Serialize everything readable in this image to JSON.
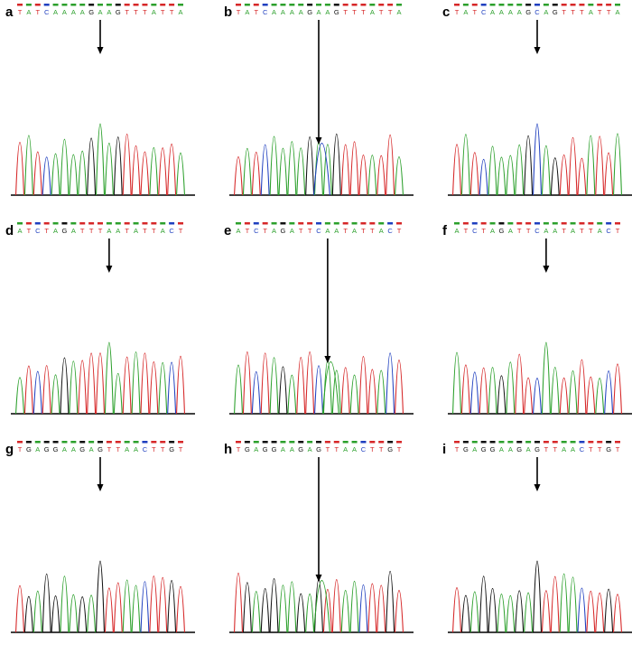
{
  "figure": {
    "description_free": true,
    "base_colors": {
      "A": "#2ca02c",
      "T": "#d62728",
      "C": "#1f3fbf",
      "G": "#111111",
      "N": "#999999",
      "axis": "#000000",
      "arrow": "#000000"
    },
    "panels": [
      {
        "label": "a",
        "sequence": "TATCAAAAGAAGTTTATTA",
        "mutant_index": 9,
        "heterozygous": false
      },
      {
        "label": "b",
        "sequence": "TATCAAAAGAAGTTTATTA",
        "mutant_index": 9,
        "heterozygous": true,
        "second_base": "C"
      },
      {
        "label": "c",
        "sequence": "TATCAAAAGCAGTTTATTA",
        "mutant_index": 9,
        "heterozygous": false
      },
      {
        "label": "d",
        "sequence": "ATCTAGATTTAATATTACT",
        "mutant_index": 10,
        "heterozygous": false
      },
      {
        "label": "e",
        "sequence": "ATCTAGATTCAATATTACT",
        "mutant_index": 10,
        "heterozygous": true,
        "second_base": "A"
      },
      {
        "label": "f",
        "sequence": "ATCTAGATTCAATATTACT",
        "mutant_index": 10,
        "heterozygous": false
      },
      {
        "label": "g",
        "sequence": "TGAGGAAGAGTTAACTTGT",
        "mutant_index": 9,
        "heterozygous": false
      },
      {
        "label": "h",
        "sequence": "TGAGGAAGAGTTAACTTGT",
        "mutant_index": 9,
        "heterozygous": true,
        "second_base": "A"
      },
      {
        "label": "i",
        "sequence": "TGAGGAAGAGTTAACTTGT",
        "mutant_index": 9,
        "heterozygous": false
      }
    ]
  }
}
